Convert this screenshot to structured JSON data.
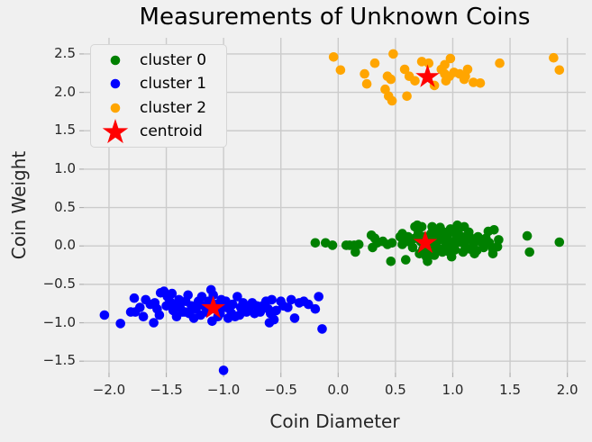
{
  "chart_data": {
    "type": "scatter",
    "title": "Measurements of Unknown Coins",
    "xlabel": "Coin Diameter",
    "ylabel": "Coin Weight",
    "xlim": [
      -2.22,
      2.16
    ],
    "ylim": [
      -1.65,
      2.71
    ],
    "grid": true,
    "legend_position": "upper left",
    "x_ticks": [
      -2.0,
      -1.5,
      -1.0,
      -0.5,
      0.0,
      0.5,
      1.0,
      1.5,
      2.0
    ],
    "x_tick_labels": [
      "−2.0",
      "−1.5",
      "−1.0",
      "−0.5",
      "0.0",
      "0.5",
      "1.0",
      "1.5",
      "2.0"
    ],
    "y_ticks": [
      2.5,
      2.0,
      1.5,
      1.0,
      0.5,
      0.0,
      -0.5,
      -1.0,
      -1.5
    ],
    "y_tick_labels": [
      "2.5",
      "2.0",
      "1.5",
      "1.0",
      "0.5",
      "0.0",
      "−0.5",
      "−1.0",
      "−1.5"
    ],
    "series": [
      {
        "name": "cluster 0",
        "marker": "circle",
        "color": "#008000",
        "points": [
          [
            -0.2,
            0.04
          ],
          [
            -0.11,
            0.04
          ],
          [
            -0.05,
            0.01
          ],
          [
            0.07,
            0.01
          ],
          [
            0.1,
            0.01
          ],
          [
            0.14,
            0.01
          ],
          [
            0.15,
            -0.08
          ],
          [
            0.18,
            0.02
          ],
          [
            0.29,
            0.14
          ],
          [
            0.3,
            -0.02
          ],
          [
            0.32,
            0.1
          ],
          [
            0.34,
            0.04
          ],
          [
            0.39,
            0.06
          ],
          [
            0.43,
            0.02
          ],
          [
            0.46,
            -0.2
          ],
          [
            0.47,
            0.04
          ],
          [
            0.54,
            0.12
          ],
          [
            0.56,
            0.02
          ],
          [
            0.56,
            0.16
          ],
          [
            0.57,
            0.04
          ],
          [
            0.59,
            -0.18
          ],
          [
            0.61,
            0.12
          ],
          [
            0.63,
            0.05
          ],
          [
            0.65,
            -0.02
          ],
          [
            0.67,
            0.25
          ],
          [
            0.67,
            0.1
          ],
          [
            0.69,
            0.27
          ],
          [
            0.7,
            0.17
          ],
          [
            0.71,
            -0.1
          ],
          [
            0.72,
            0.06
          ],
          [
            0.73,
            0.25
          ],
          [
            0.74,
            -0.04
          ],
          [
            0.75,
            0.12
          ],
          [
            0.76,
            0.01
          ],
          [
            0.77,
            -0.14
          ],
          [
            0.78,
            -0.2
          ],
          [
            0.79,
            0.08
          ],
          [
            0.8,
            -0.06
          ],
          [
            0.81,
            0.16
          ],
          [
            0.82,
            0.25
          ],
          [
            0.83,
            0.02
          ],
          [
            0.84,
            -0.12
          ],
          [
            0.85,
            0.14
          ],
          [
            0.86,
            0.2
          ],
          [
            0.87,
            -0.03
          ],
          [
            0.88,
            0.08
          ],
          [
            0.89,
            0.24
          ],
          [
            0.9,
            0.16
          ],
          [
            0.91,
            -0.08
          ],
          [
            0.92,
            0.18
          ],
          [
            0.93,
            0.1
          ],
          [
            0.94,
            0.02
          ],
          [
            0.95,
            0.13
          ],
          [
            0.96,
            0.06
          ],
          [
            0.97,
            -0.08
          ],
          [
            0.98,
            0.22
          ],
          [
            0.99,
            -0.14
          ],
          [
            1.0,
            0.02
          ],
          [
            1.01,
            0.18
          ],
          [
            1.02,
            -0.05
          ],
          [
            1.03,
            0.1
          ],
          [
            1.04,
            0.27
          ],
          [
            1.05,
            0.16
          ],
          [
            1.06,
            0.05
          ],
          [
            1.08,
            0.12
          ],
          [
            1.09,
            -0.08
          ],
          [
            1.1,
            0.25
          ],
          [
            1.11,
            -0.02
          ],
          [
            1.12,
            0.08
          ],
          [
            1.14,
            0.18
          ],
          [
            1.15,
            -0.04
          ],
          [
            1.16,
            0.1
          ],
          [
            1.18,
            0.03
          ],
          [
            1.19,
            -0.1
          ],
          [
            1.21,
            -0.06
          ],
          [
            1.22,
            0.12
          ],
          [
            1.25,
            0.05
          ],
          [
            1.27,
            -0.02
          ],
          [
            1.29,
            0.1
          ],
          [
            1.31,
            0.19
          ],
          [
            1.32,
            0.04
          ],
          [
            1.35,
            -0.04
          ],
          [
            1.35,
            -0.1
          ],
          [
            1.36,
            0.21
          ],
          [
            1.39,
            -0.01
          ],
          [
            1.4,
            0.08
          ],
          [
            1.65,
            0.13
          ],
          [
            1.67,
            -0.08
          ],
          [
            1.93,
            0.05
          ]
        ]
      },
      {
        "name": "cluster 1",
        "marker": "circle",
        "color": "#0000ff",
        "points": [
          [
            -2.04,
            -0.9
          ],
          [
            -1.9,
            -1.01
          ],
          [
            -1.81,
            -0.86
          ],
          [
            -1.78,
            -0.68
          ],
          [
            -1.77,
            -0.86
          ],
          [
            -1.73,
            -0.8
          ],
          [
            -1.7,
            -0.92
          ],
          [
            -1.68,
            -0.7
          ],
          [
            -1.64,
            -0.76
          ],
          [
            -1.61,
            -1.0
          ],
          [
            -1.6,
            -0.74
          ],
          [
            -1.58,
            -0.82
          ],
          [
            -1.56,
            -0.9
          ],
          [
            -1.55,
            -0.61
          ],
          [
            -1.52,
            -0.59
          ],
          [
            -1.5,
            -0.78
          ],
          [
            -1.49,
            -0.66
          ],
          [
            -1.47,
            -0.72
          ],
          [
            -1.45,
            -0.62
          ],
          [
            -1.44,
            -0.84
          ],
          [
            -1.43,
            -0.76
          ],
          [
            -1.41,
            -0.92
          ],
          [
            -1.39,
            -0.7
          ],
          [
            -1.38,
            -0.8
          ],
          [
            -1.36,
            -0.86
          ],
          [
            -1.34,
            -0.86
          ],
          [
            -1.33,
            -0.72
          ],
          [
            -1.31,
            -0.64
          ],
          [
            -1.3,
            -0.88
          ],
          [
            -1.28,
            -0.78
          ],
          [
            -1.26,
            -0.94
          ],
          [
            -1.24,
            -0.82
          ],
          [
            -1.22,
            -0.72
          ],
          [
            -1.2,
            -0.9
          ],
          [
            -1.19,
            -0.66
          ],
          [
            -1.17,
            -0.78
          ],
          [
            -1.15,
            -0.86
          ],
          [
            -1.13,
            -0.72
          ],
          [
            -1.11,
            -0.57
          ],
          [
            -1.1,
            -0.98
          ],
          [
            -1.09,
            -0.64
          ],
          [
            -1.08,
            -0.82
          ],
          [
            -1.06,
            -0.76
          ],
          [
            -1.05,
            -0.92
          ],
          [
            -1.03,
            -0.88
          ],
          [
            -1.02,
            -0.7
          ],
          [
            -1.0,
            -0.8
          ],
          [
            -1.0,
            -1.62
          ],
          [
            -0.98,
            -0.72
          ],
          [
            -0.96,
            -0.94
          ],
          [
            -0.95,
            -0.82
          ],
          [
            -0.93,
            -0.88
          ],
          [
            -0.92,
            -0.76
          ],
          [
            -0.9,
            -0.92
          ],
          [
            -0.88,
            -0.66
          ],
          [
            -0.86,
            -0.9
          ],
          [
            -0.85,
            -0.8
          ],
          [
            -0.83,
            -0.74
          ],
          [
            -0.8,
            -0.86
          ],
          [
            -0.78,
            -0.8
          ],
          [
            -0.75,
            -0.74
          ],
          [
            -0.73,
            -0.88
          ],
          [
            -0.71,
            -0.78
          ],
          [
            -0.68,
            -0.86
          ],
          [
            -0.66,
            -0.78
          ],
          [
            -0.63,
            -0.72
          ],
          [
            -0.61,
            -0.82
          ],
          [
            -0.6,
            -1.0
          ],
          [
            -0.59,
            -0.88
          ],
          [
            -0.58,
            -0.7
          ],
          [
            -0.56,
            -0.96
          ],
          [
            -0.54,
            -0.84
          ],
          [
            -0.5,
            -0.72
          ],
          [
            -0.48,
            -0.78
          ],
          [
            -0.44,
            -0.8
          ],
          [
            -0.41,
            -0.7
          ],
          [
            -0.38,
            -0.94
          ],
          [
            -0.34,
            -0.74
          ],
          [
            -0.3,
            -0.72
          ],
          [
            -0.26,
            -0.76
          ],
          [
            -0.2,
            -0.82
          ],
          [
            -0.17,
            -0.66
          ],
          [
            -0.14,
            -1.08
          ]
        ]
      },
      {
        "name": "cluster 2",
        "marker": "circle",
        "color": "#ffa500",
        "points": [
          [
            -0.04,
            2.46
          ],
          [
            0.02,
            2.29
          ],
          [
            0.23,
            2.24
          ],
          [
            0.25,
            2.11
          ],
          [
            0.32,
            2.38
          ],
          [
            0.41,
            2.04
          ],
          [
            0.43,
            2.21
          ],
          [
            0.44,
            1.95
          ],
          [
            0.46,
            2.17
          ],
          [
            0.47,
            1.89
          ],
          [
            0.48,
            2.5
          ],
          [
            0.58,
            2.3
          ],
          [
            0.6,
            1.95
          ],
          [
            0.62,
            2.21
          ],
          [
            0.67,
            2.15
          ],
          [
            0.73,
            2.4
          ],
          [
            0.79,
            2.38
          ],
          [
            0.84,
            2.09
          ],
          [
            0.9,
            2.3
          ],
          [
            0.93,
            2.24
          ],
          [
            0.93,
            2.36
          ],
          [
            0.94,
            2.15
          ],
          [
            0.97,
            2.21
          ],
          [
            0.98,
            2.44
          ],
          [
            1.01,
            2.26
          ],
          [
            1.06,
            2.24
          ],
          [
            1.1,
            2.17
          ],
          [
            1.11,
            2.21
          ],
          [
            1.13,
            2.3
          ],
          [
            1.18,
            2.13
          ],
          [
            1.24,
            2.12
          ],
          [
            1.41,
            2.38
          ],
          [
            1.88,
            2.45
          ],
          [
            1.93,
            2.29
          ]
        ]
      },
      {
        "name": "centroid",
        "marker": "star",
        "color": "#ff0000",
        "points": [
          [
            0.76,
            0.04
          ],
          [
            -1.09,
            -0.81
          ],
          [
            0.78,
            2.2
          ]
        ]
      }
    ]
  },
  "legend": {
    "items": [
      {
        "label": "cluster 0",
        "marker": "dot",
        "color": "#008000"
      },
      {
        "label": "cluster 1",
        "marker": "dot",
        "color": "#0000ff"
      },
      {
        "label": "cluster 2",
        "marker": "dot",
        "color": "#ffa500"
      },
      {
        "label": "centroid",
        "marker": "star",
        "color": "#ff0000"
      }
    ]
  },
  "colors": {
    "background": "#f0f0f0",
    "grid": "#cbcbcb",
    "tick_mark": "#b0b0b0",
    "title_text": "#000000",
    "axis_text": "#262626",
    "legend_background": "#f1f1f1",
    "legend_border": "#d5d5d5"
  }
}
